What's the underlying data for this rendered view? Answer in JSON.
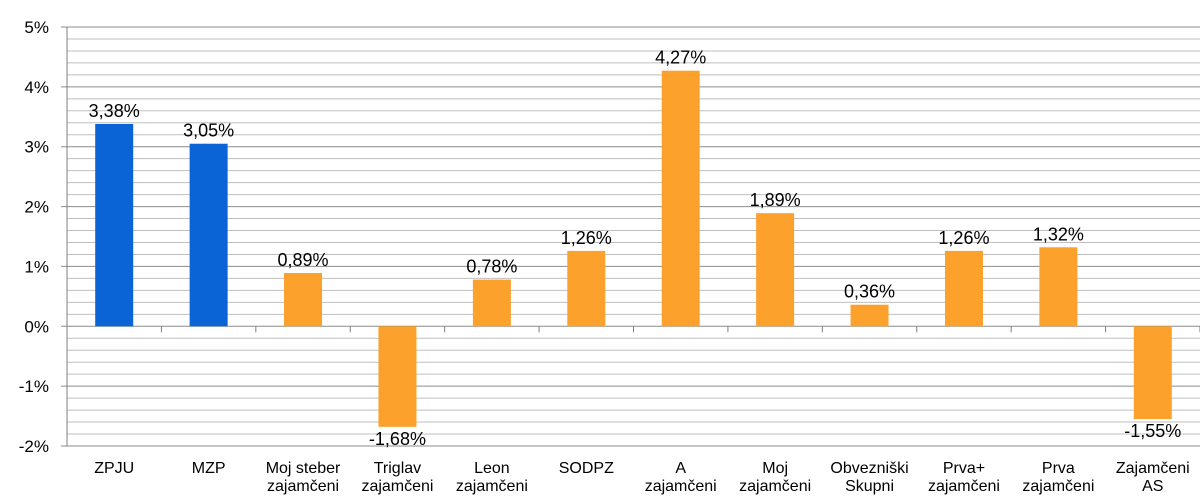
{
  "chart_data": {
    "type": "bar",
    "title": "",
    "xlabel": "",
    "ylabel": "",
    "ylim": [
      -2,
      5
    ],
    "y_ticks": [
      "5%",
      "4%",
      "3%",
      "2%",
      "1%",
      "0%",
      "-1%",
      "-2%"
    ],
    "y_tick_values": [
      5,
      4,
      3,
      2,
      1,
      0,
      -1,
      -2
    ],
    "minor_grid_step": 0.2,
    "grid": true,
    "legend": "none",
    "categories": [
      [
        "ZPJU"
      ],
      [
        "MZP"
      ],
      [
        "Moj steber",
        "zajamčeni"
      ],
      [
        "Triglav",
        "zajamčeni"
      ],
      [
        "Leon",
        "zajamčeni"
      ],
      [
        "SODPZ"
      ],
      [
        "A",
        "zajamčeni"
      ],
      [
        "Moj",
        "zajamčeni"
      ],
      [
        "Obvezniški",
        "Skupni"
      ],
      [
        "Prva+",
        "zajamčeni"
      ],
      [
        "Prva",
        "zajamčeni"
      ],
      [
        "Zajamčeni",
        "AS"
      ]
    ],
    "values": [
      3.38,
      3.05,
      0.89,
      -1.68,
      0.78,
      1.26,
      4.27,
      1.89,
      0.36,
      1.26,
      1.32,
      -1.55
    ],
    "data_labels": [
      "3,38%",
      "3,05%",
      "0,89%",
      "-1,68%",
      "0,78%",
      "1,26%",
      "4,27%",
      "1,89%",
      "0,36%",
      "1,26%",
      "1,32%",
      "-1,55%"
    ],
    "bar_colors": [
      "#0a64d6",
      "#0a64d6",
      "#fba12c",
      "#fba12c",
      "#fba12c",
      "#fba12c",
      "#fba12c",
      "#fba12c",
      "#fba12c",
      "#fba12c",
      "#fba12c",
      "#fba12c"
    ],
    "colors": {
      "blue": "#0a64d6",
      "orange": "#fba12c",
      "major_grid": "#8c8c8c",
      "minor_grid": "#bfbfbf",
      "axis": "#7f7f7f"
    }
  }
}
